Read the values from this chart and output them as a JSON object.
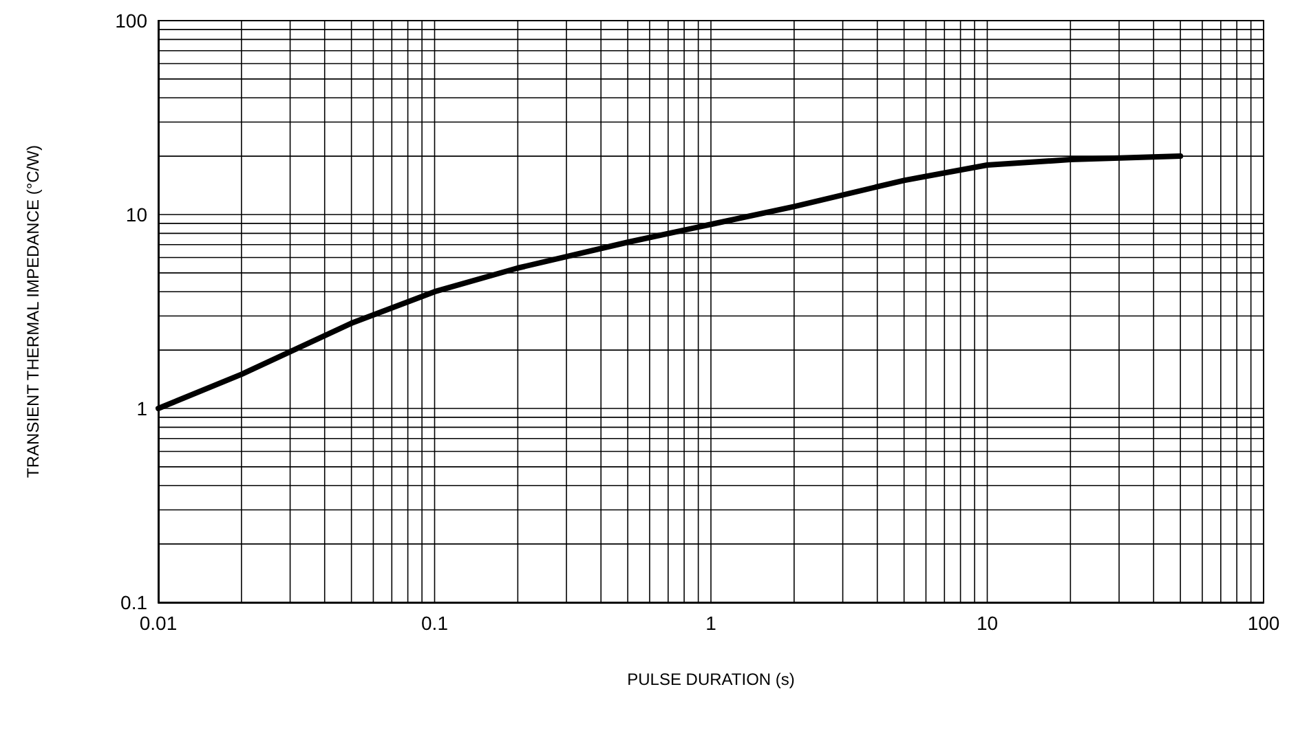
{
  "chart_data": {
    "type": "line",
    "xlabel": "PULSE DURATION (s)",
    "ylabel": "TRANSIENT THERMAL IMPEDANCE (°C/W)",
    "log": "xy",
    "grid": true,
    "marker": "none",
    "line_style": "solid",
    "x": [
      0.01,
      0.02,
      0.05,
      0.1,
      0.2,
      0.5,
      1,
      2,
      5,
      10,
      20,
      50
    ],
    "series": [
      {
        "color": "#000000",
        "values": [
          1,
          1.5,
          2.75,
          4,
          5.3,
          7.2,
          8.9,
          11,
          15,
          18,
          19.2,
          20
        ]
      }
    ],
    "xlim": [
      0.01,
      100
    ],
    "xticks": [
      0.01,
      0.1,
      1,
      10,
      100
    ],
    "ylim": [
      0.1,
      100
    ],
    "yticks": [
      0.1,
      1,
      10,
      100
    ]
  }
}
